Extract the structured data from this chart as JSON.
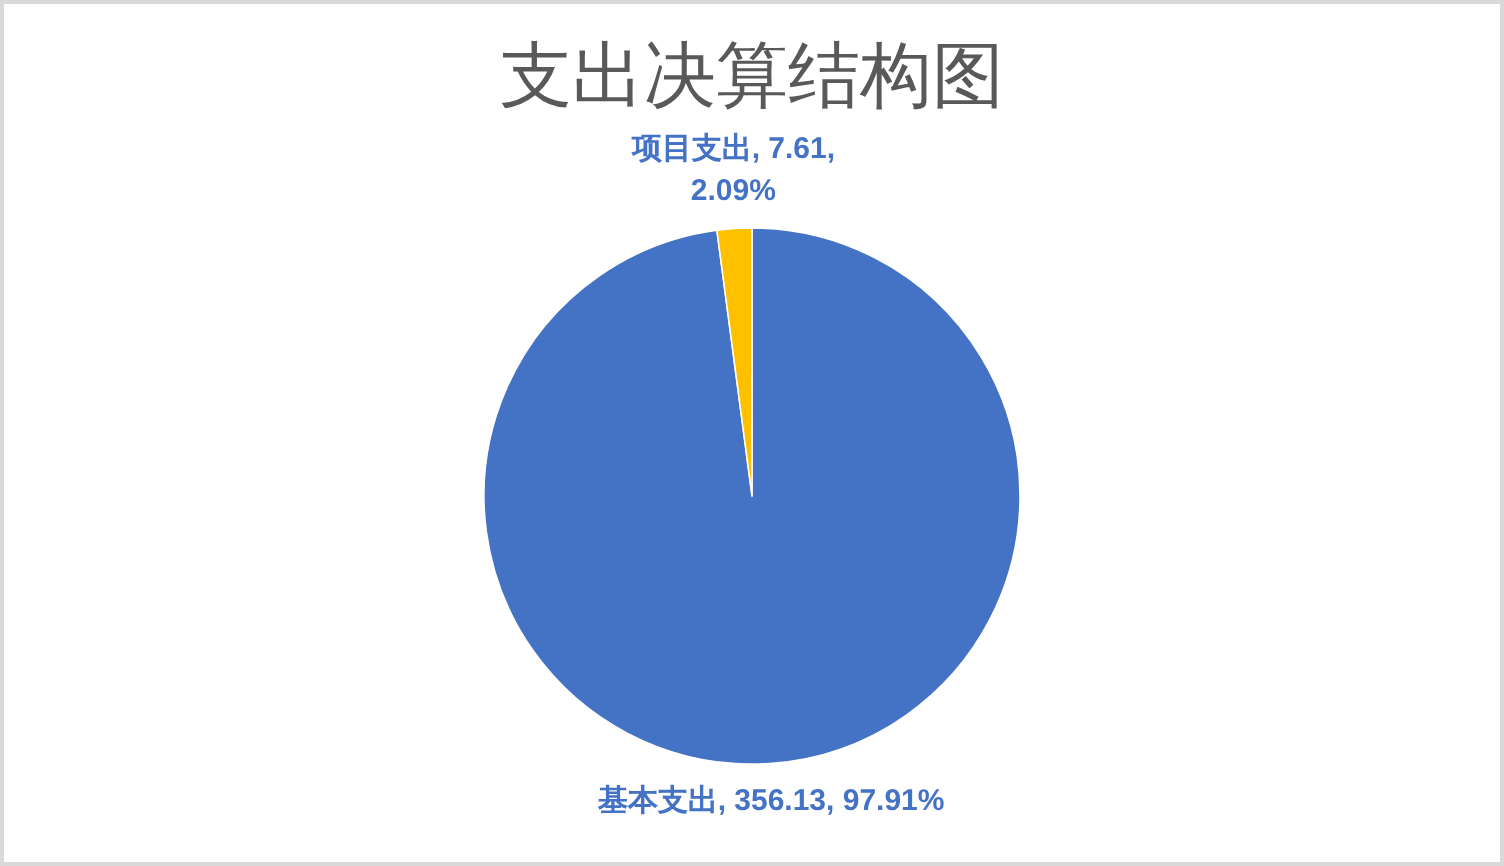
{
  "chart_data": {
    "type": "pie",
    "title": "支出决算结构图",
    "categories": [
      "基本支出",
      "项目支出"
    ],
    "values": [
      356.13,
      7.61
    ],
    "colors": [
      "#4472c4",
      "#ffc000"
    ],
    "value_labels": [
      "356.13, 97.91%",
      "7.61, 2.09%"
    ]
  }
}
